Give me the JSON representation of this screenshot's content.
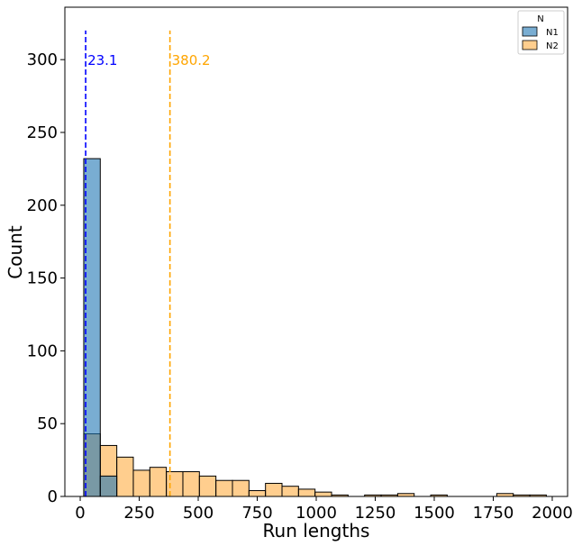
{
  "chart_data": {
    "type": "bar",
    "title": "",
    "xlabel": "Run lengths",
    "ylabel": "Count",
    "xlim": [
      -65,
      2065
    ],
    "ylim": [
      0,
      336
    ],
    "x_ticks": [
      0,
      250,
      500,
      750,
      1000,
      1250,
      1500,
      1750,
      2000
    ],
    "y_ticks": [
      0,
      50,
      100,
      150,
      200,
      250,
      300
    ],
    "bin_edges": [
      15,
      85,
      155,
      225,
      295,
      365,
      435,
      505,
      575,
      645,
      715,
      785,
      855,
      925,
      995,
      1065,
      1135,
      1205,
      1275,
      1345,
      1415,
      1485,
      1555,
      1625,
      1695,
      1765,
      1835,
      1905,
      1975
    ],
    "series": [
      {
        "name": "N1",
        "color": "#1f77b4",
        "values": [
          232,
          14,
          0,
          0,
          0,
          0,
          0,
          0,
          0,
          0,
          0,
          0,
          0,
          0,
          0,
          0,
          0,
          0,
          0,
          0,
          0,
          0,
          0,
          0,
          0,
          0,
          0,
          0
        ]
      },
      {
        "name": "N2",
        "color": "#ff7f0e",
        "values": [
          43,
          35,
          27,
          18,
          20,
          17,
          17,
          14,
          11,
          11,
          4,
          9,
          7,
          5,
          3,
          1,
          0,
          1,
          1,
          2,
          0,
          1,
          0,
          0,
          0,
          2,
          1,
          1
        ]
      }
    ],
    "vlines": [
      {
        "x": 23.1,
        "label": "23.1",
        "color": "#0000ff",
        "y_top": 320
      },
      {
        "x": 380.2,
        "label": "380.2",
        "color": "#ffa500",
        "y_top": 320
      }
    ],
    "legend": {
      "title": "N",
      "position": "top-right"
    },
    "grid": false
  }
}
